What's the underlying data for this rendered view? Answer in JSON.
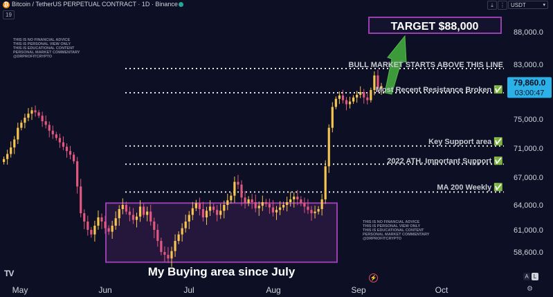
{
  "header": {
    "title": "Bitcoin / TetherUS PERPETUAL CONTRACT · 1D · Binance",
    "indicator_count": "19",
    "currency": "USDT",
    "btc_symbol": "₿"
  },
  "annotations": {
    "disclaimer": [
      "THIS IS NO FINANCIAL ADVICE",
      "THIS IS PERSONAL VIEW ONLY",
      "THIS IS EDUCATIONAL CONTENT",
      "PERSONAL MARKET COMMENTARY",
      "@DRPROFITCRYPTO"
    ],
    "target_label": "TARGET $88,000",
    "buying_area_label": "My Buying area since July",
    "bull_line_label": "BULL MARKET STARTS ABOVE THIS LINE",
    "resistance_label": "Most Recent Resistance Broken ✅",
    "support_label": "Key Support area ✅",
    "ath_label": "2022 ATH, Important Support ✅",
    "ma200_label": "MA 200 Weekly ✅"
  },
  "price_box": {
    "price": "79,860.0",
    "countdown": "03:00:47"
  },
  "colors": {
    "up": "#f5c451",
    "down": "#e0577f",
    "purple": "#9a3fb0",
    "green": "#3d9a3a"
  },
  "chart_data": {
    "type": "candlestick",
    "x_ticks": [
      "May",
      "Jun",
      "Jul",
      "Aug",
      "Sep",
      "Oct"
    ],
    "y_ticks": [
      "88,000.0",
      "83,000.0",
      "79,000.0",
      "75,000.0",
      "71,000.0",
      "67,000.0",
      "64,000.0",
      "61,000.0",
      "58,600.0"
    ],
    "y_values": [
      88000,
      83000,
      79000,
      75000,
      71000,
      67000,
      64000,
      61000,
      58600
    ],
    "levels": {
      "bull_line": 82400,
      "resistance": 78900,
      "key_support": 71300,
      "ath_2022": 68800,
      "ma200_weekly": 65400
    },
    "buying_area": {
      "low": 57500,
      "high": 64200
    },
    "target": 88000,
    "close_series": [
      69500,
      70200,
      71100,
      72200,
      73800,
      74500,
      75200,
      75800,
      76300,
      76000,
      75500,
      74700,
      74200,
      73400,
      72900,
      72400,
      71800,
      71200,
      70600,
      70100,
      69200,
      66000,
      63000,
      62000,
      61000,
      60500,
      61500,
      62500,
      62000,
      61200,
      60800,
      61500,
      62400,
      63500,
      64000,
      63200,
      62800,
      62200,
      62600,
      63800,
      62800,
      63200,
      62000,
      61000,
      59800,
      58600,
      58300,
      57900,
      58700,
      59800,
      60500,
      61200,
      62000,
      62800,
      63600,
      64200,
      63500,
      62500,
      63300,
      63800,
      63400,
      62800,
      63300,
      64000,
      64500,
      65000,
      66500,
      66200,
      64800,
      64200,
      64600,
      64300,
      63600,
      63900,
      64300,
      64100,
      63700,
      63100,
      63400,
      63700,
      64000,
      64300,
      64600,
      64900,
      64600,
      64200,
      63800,
      63400,
      63000,
      63200,
      63500,
      64600,
      68500,
      73800,
      76800,
      78000,
      78500,
      77800,
      77200,
      77600,
      78200,
      78600,
      79000,
      78200,
      77800,
      79300,
      81400,
      79500,
      79860
    ]
  }
}
